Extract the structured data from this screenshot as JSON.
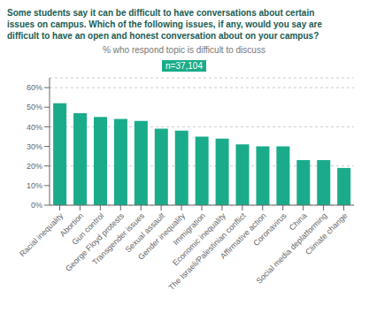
{
  "chart_data": {
    "type": "bar",
    "title": "Some students say it can be difficult to have conversations about certain\nissues on campus. Which of the following issues, if any, would you say are\ndifficult to have an open and honest conversation about on your campus?",
    "subtitle": "% who respond topic is difficult to discuss",
    "annotations": [
      "n=37,104"
    ],
    "categories": [
      "Racial inequality",
      "Abortion",
      "Gun control",
      "George Floyd protests",
      "Transgender issues",
      "Sexual assault",
      "Gender inequality",
      "Immigration",
      "Economic inequality",
      "The Israeli/Palestinian conflict",
      "Affirmative action",
      "Coronavirus",
      "China",
      "Social media deplatforming",
      "Climate change"
    ],
    "values": [
      0.52,
      0.47,
      0.45,
      0.44,
      0.43,
      0.39,
      0.38,
      0.35,
      0.34,
      0.31,
      0.3,
      0.3,
      0.23,
      0.23,
      0.19
    ],
    "color": "#1aac8a",
    "ylim": [
      0,
      0.65
    ],
    "yticks": [
      {
        "value": 0,
        "label": "0%"
      },
      {
        "value": 0.1,
        "label": "10%"
      },
      {
        "value": 0.2,
        "label": "20%"
      },
      {
        "value": 0.3,
        "label": "30%"
      },
      {
        "value": 0.4,
        "label": "40%"
      },
      {
        "value": 0.5,
        "label": "50%"
      },
      {
        "value": 0.6,
        "label": "60%"
      }
    ],
    "grid": true
  }
}
